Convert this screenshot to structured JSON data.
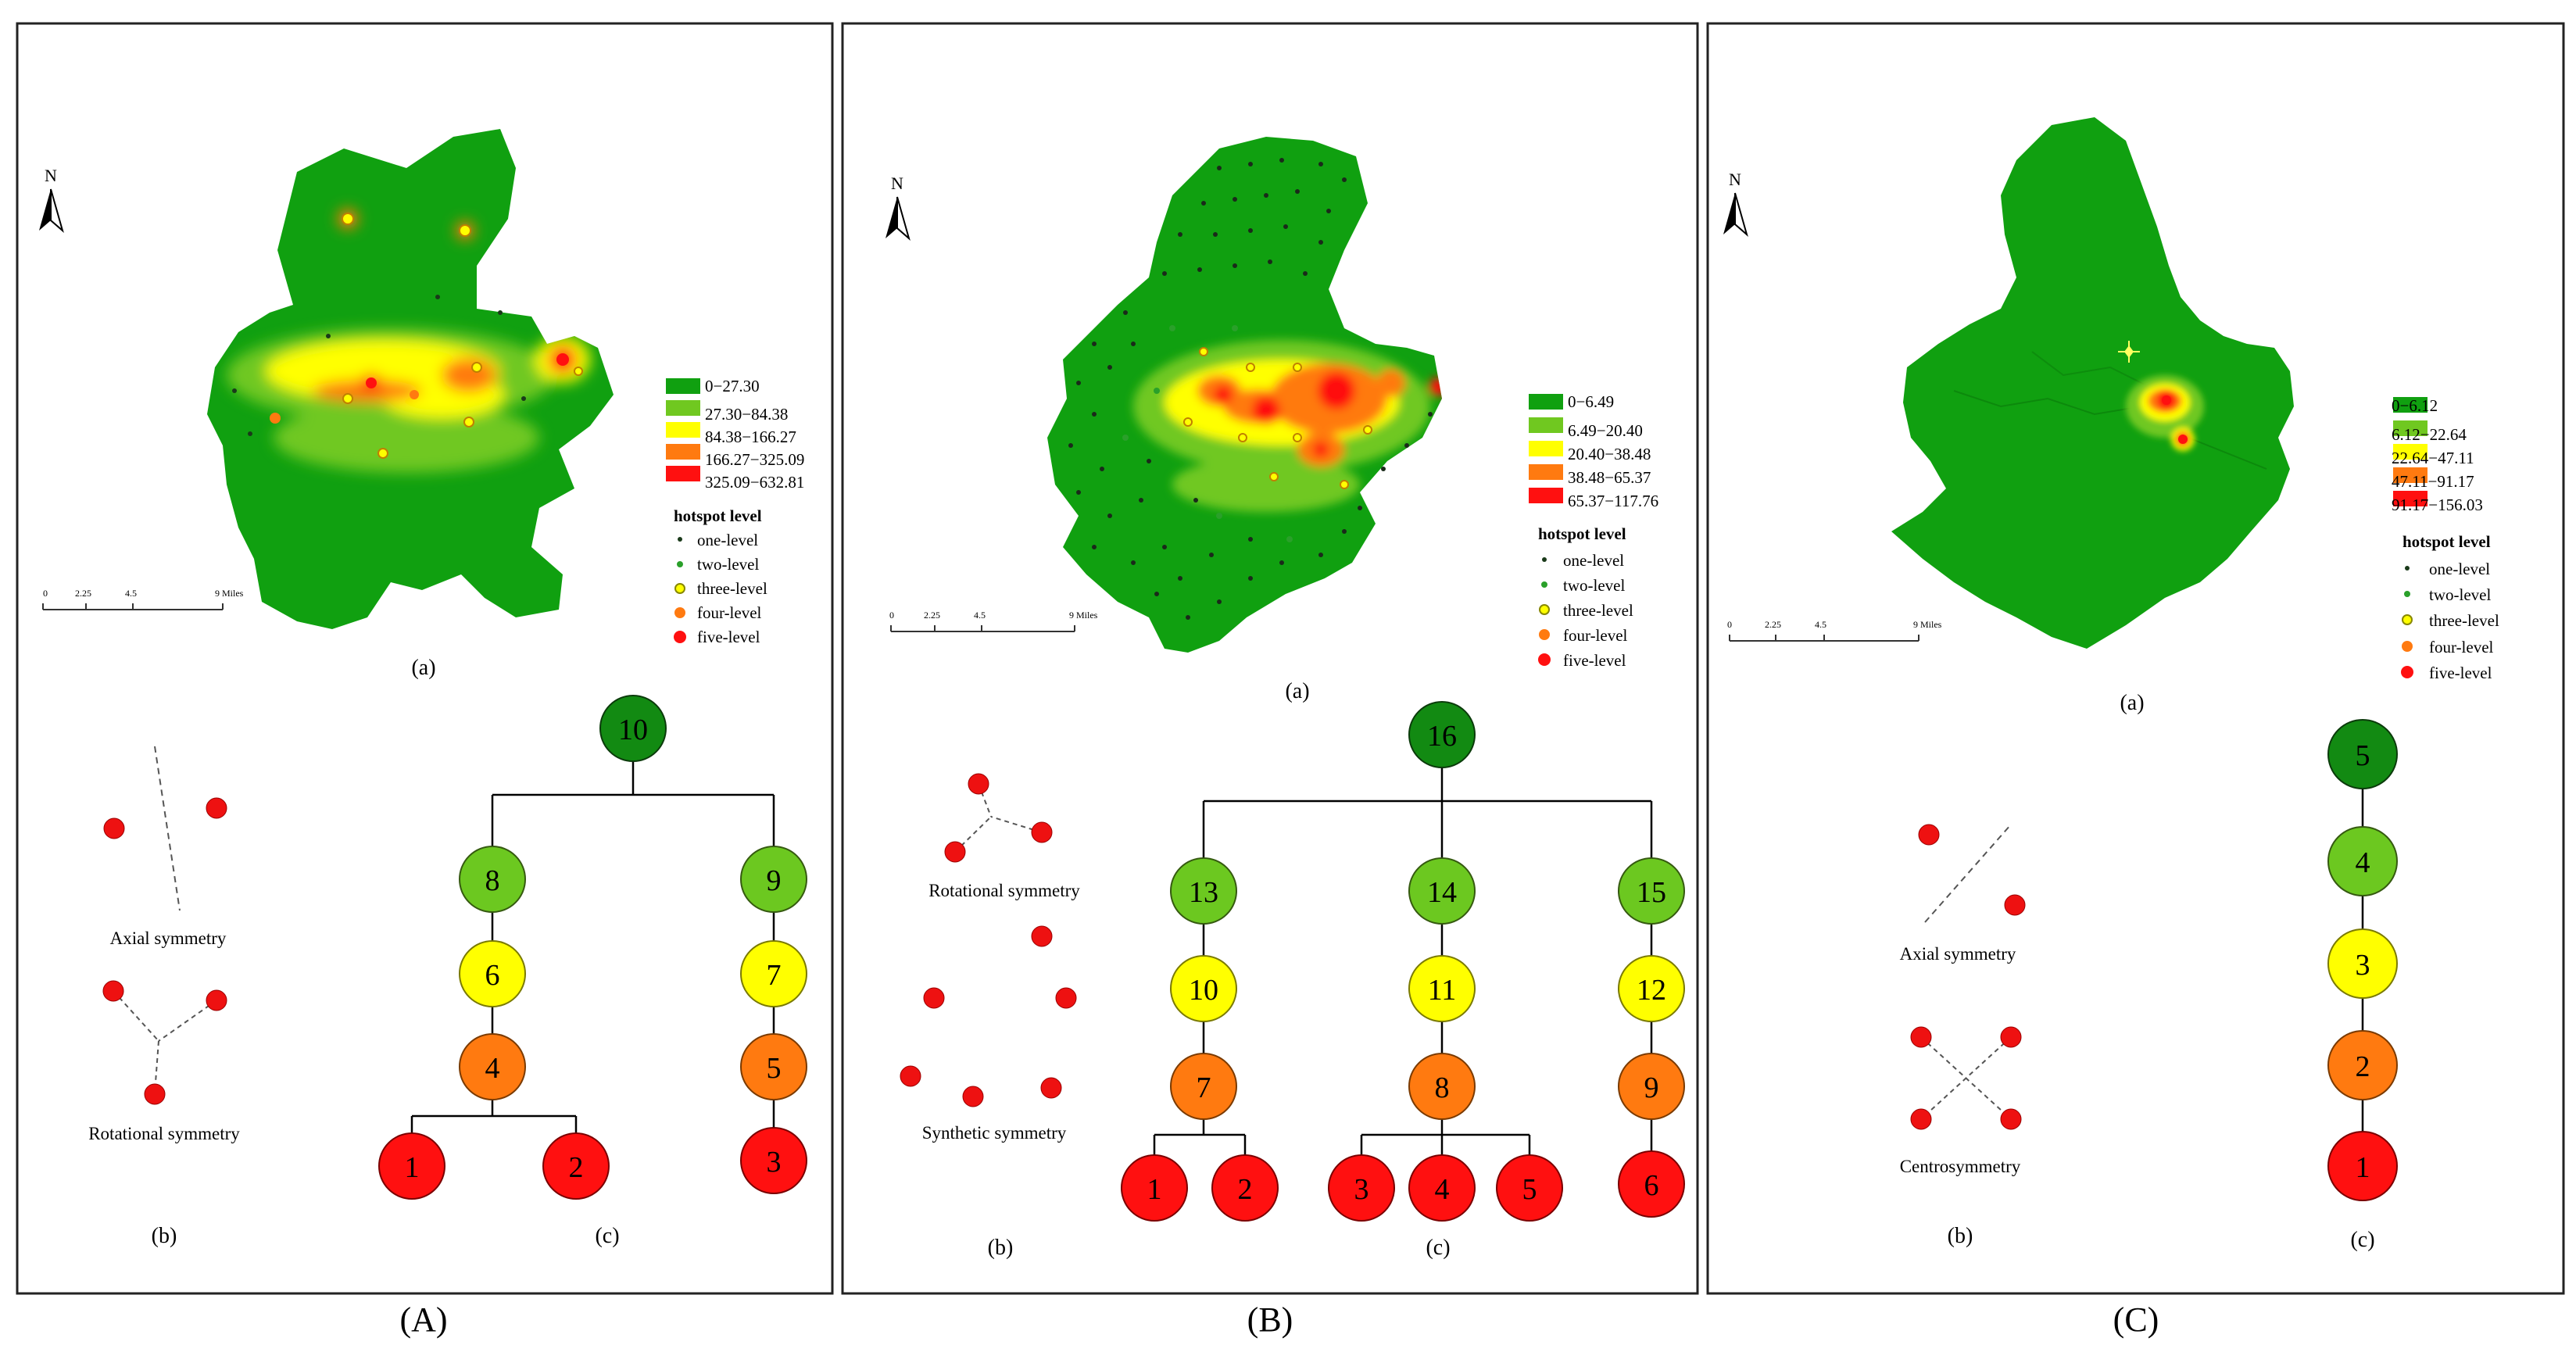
{
  "figure": {
    "panels": [
      {
        "id": "A",
        "caption": "(A)",
        "map_label": "(a)",
        "b_label": "(b)",
        "c_label": "(c)",
        "north": "N",
        "scale": {
          "ticks": [
            "0",
            "2.25",
            "4.5",
            "9 Miles"
          ]
        },
        "legend": {
          "classes": [
            "0−27.30",
            "27.30−84.38",
            "84.38−166.27",
            "166.27−325.09",
            "325.09−632.81"
          ],
          "title": "hotspot level",
          "levels": [
            "one-level",
            "two-level",
            "three-level",
            "four-level",
            "five-level"
          ]
        },
        "symmetry": [
          "Axial symmetry",
          "Rotational symmetry"
        ],
        "tree_nodes": [
          "10",
          "8",
          "9",
          "6",
          "7",
          "4",
          "5",
          "1",
          "2",
          "3"
        ]
      },
      {
        "id": "B",
        "caption": "(B)",
        "map_label": "(a)",
        "b_label": "(b)",
        "c_label": "(c)",
        "north": "N",
        "scale": {
          "ticks": [
            "0",
            "2.25",
            "4.5",
            "9 Miles"
          ]
        },
        "legend": {
          "classes": [
            "0−6.49",
            "6.49−20.40",
            "20.40−38.48",
            "38.48−65.37",
            "65.37−117.76"
          ],
          "title": "hotspot level",
          "levels": [
            "one-level",
            "two-level",
            "three-level",
            "four-level",
            "five-level"
          ]
        },
        "symmetry": [
          "Rotational symmetry",
          "Synthetic symmetry"
        ],
        "tree_nodes": [
          "16",
          "13",
          "14",
          "15",
          "10",
          "11",
          "12",
          "7",
          "8",
          "9",
          "1",
          "2",
          "3",
          "4",
          "5",
          "6"
        ]
      },
      {
        "id": "C",
        "caption": "(C)",
        "map_label": "(a)",
        "b_label": "(b)",
        "c_label": "(c)",
        "north": "N",
        "scale": {
          "ticks": [
            "0",
            "2.25",
            "4.5",
            "9 Miles"
          ]
        },
        "legend": {
          "classes": [
            "0−6.12",
            "6.12−22.64",
            "22.64−47.11",
            "47.11−91.17",
            "91.17−156.03"
          ],
          "title": "hotspot level",
          "levels": [
            "one-level",
            "two-level",
            "three-level",
            "four-level",
            "five-level"
          ]
        },
        "symmetry": [
          "Axial symmetry",
          "Centrosymmetry"
        ],
        "tree_nodes": [
          "5",
          "4",
          "3",
          "2",
          "1"
        ]
      }
    ],
    "colors": {
      "base_green": "#10a010",
      "light_green": "#70c820",
      "yellow": "#ffff00",
      "orange": "#ff7a10",
      "red": "#ff1010",
      "dark_green_node": "#128a12"
    }
  }
}
